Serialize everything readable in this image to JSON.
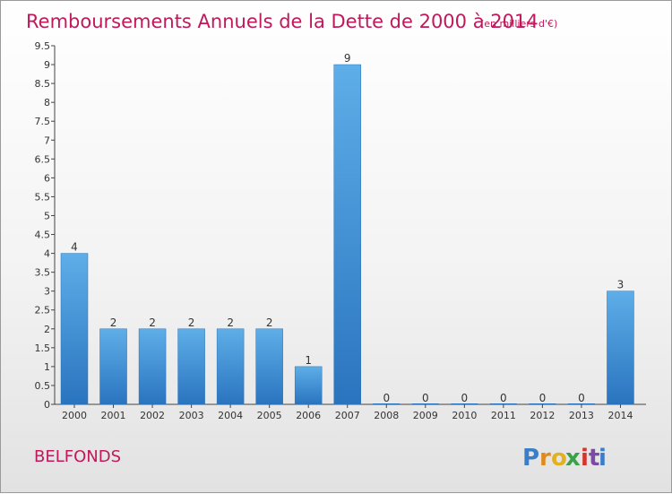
{
  "chart_data": {
    "type": "bar",
    "title": "Remboursements Annuels de la Dette de 2000 à 2014",
    "subtitle": "(en milliers d'€)",
    "categories": [
      "2000",
      "2001",
      "2002",
      "2003",
      "2004",
      "2005",
      "2006",
      "2007",
      "2008",
      "2009",
      "2010",
      "2011",
      "2012",
      "2013",
      "2014"
    ],
    "values": [
      4,
      2,
      2,
      2,
      2,
      2,
      1,
      9,
      0,
      0,
      0,
      0,
      0,
      0,
      3
    ],
    "yticks": [
      "0",
      "0.5",
      "1",
      "1.5",
      "2",
      "2.5",
      "3",
      "3.5",
      "4",
      "4.5",
      "5",
      "5.5",
      "6",
      "6.5",
      "7",
      "7.5",
      "8",
      "8.5",
      "9",
      "9.5"
    ],
    "ylim": [
      0,
      9.5
    ],
    "xlabel": "",
    "ylabel": "",
    "grid": false,
    "bar_color": "#3d8fd6",
    "bar_highlight": "#5aabe6",
    "bar_shadow": "#2a72b8"
  },
  "footer": {
    "commune": "BELFONDS",
    "logo": {
      "letters": [
        "P",
        "r",
        "o",
        "x",
        "i",
        "t",
        "i"
      ],
      "colors": [
        "#3a7dc9",
        "#e08a1e",
        "#e3b020",
        "#3aa14a",
        "#d4342e",
        "#7a4aa6",
        "#3a7dc9"
      ]
    }
  }
}
